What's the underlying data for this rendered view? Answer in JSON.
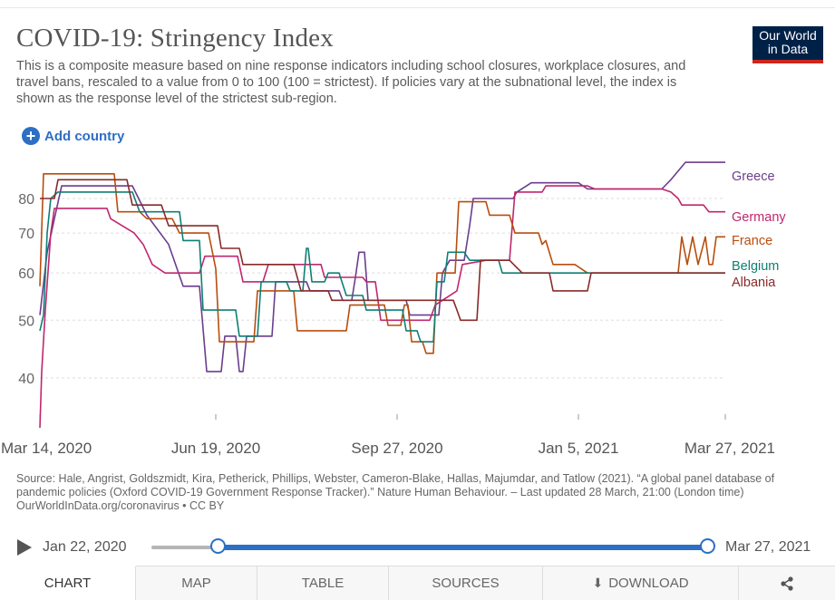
{
  "header": {
    "title": "COVID-19: Stringency Index",
    "subtitle": "This is a composite measure based on nine response indicators including school closures, workplace closures, and travel bans, rescaled to a value from 0 to 100 (100 = strictest). If policies vary at the subnational level, the index is shown as the response level of the strictest sub-region.",
    "logo_line1": "Our World",
    "logo_line2": "in Data",
    "logo_color": "#002147",
    "logo_accent": "#ce261e"
  },
  "controls": {
    "add_country_label": "Add country"
  },
  "source": {
    "line": "Source: Hale, Angrist, Goldszmidt, Kira, Petherick, Phillips, Webster, Cameron-Blake, Hallas, Majumdar, and Tatlow (2021). “A global panel database of pandemic policies (Oxford COVID-19 Government Response Tracker).” Nature Human Behaviour. – Last updated 28 March, 21:00 (London time)",
    "url": "OurWorldInData.org/coronavirus • CC BY"
  },
  "timeline": {
    "start_label": "Jan 22, 2020",
    "end_label": "Mar 27, 2021",
    "selection_start_fraction": 0.13,
    "selection_end_fraction": 1.0
  },
  "tabs": {
    "chart": "CHART",
    "map": "MAP",
    "table": "TABLE",
    "sources": "SOURCES",
    "download": "DOWNLOAD"
  },
  "chart_data": {
    "type": "line",
    "title": "COVID-19: Stringency Index",
    "y_scale": "log",
    "ylim": [
      30,
      90
    ],
    "y_ticks": [
      40,
      50,
      60,
      70,
      80
    ],
    "x_range": [
      "2020-03-14",
      "2021-03-27"
    ],
    "x_ticks": [
      {
        "date": "2020-03-14",
        "label": "Mar 14, 2020"
      },
      {
        "date": "2020-06-19",
        "label": "Jun 19, 2020"
      },
      {
        "date": "2020-09-27",
        "label": "Sep 27, 2020"
      },
      {
        "date": "2021-01-05",
        "label": "Jan 5, 2021"
      },
      {
        "date": "2021-03-27",
        "label": "Mar 27, 2021"
      }
    ],
    "grid": "horizontal-dotted",
    "legend_position": "right",
    "series": [
      {
        "name": "Greece",
        "color": "#6b3d8e",
        "points": [
          [
            "2020-03-14",
            51
          ],
          [
            "2020-03-18",
            65
          ],
          [
            "2020-03-22",
            74
          ],
          [
            "2020-03-26",
            84
          ],
          [
            "2020-05-04",
            84
          ],
          [
            "2020-05-12",
            75
          ],
          [
            "2020-05-24",
            67
          ],
          [
            "2020-06-01",
            57
          ],
          [
            "2020-06-10",
            57
          ],
          [
            "2020-06-14",
            41
          ],
          [
            "2020-06-22",
            41
          ],
          [
            "2020-06-24",
            47
          ],
          [
            "2020-06-30",
            47
          ],
          [
            "2020-07-02",
            41
          ],
          [
            "2020-07-04",
            41
          ],
          [
            "2020-07-06",
            47
          ],
          [
            "2020-07-12",
            47
          ],
          [
            "2020-07-20",
            47
          ],
          [
            "2020-07-22",
            58
          ],
          [
            "2020-08-08",
            58
          ],
          [
            "2020-08-10",
            56
          ],
          [
            "2020-08-26",
            56
          ],
          [
            "2020-08-28",
            54
          ],
          [
            "2020-09-02",
            54
          ],
          [
            "2020-09-04",
            59
          ],
          [
            "2020-09-06",
            65
          ],
          [
            "2020-09-09",
            65
          ],
          [
            "2020-09-11",
            54
          ],
          [
            "2020-09-27",
            54
          ],
          [
            "2020-10-02",
            54
          ],
          [
            "2020-10-04",
            51
          ],
          [
            "2020-10-20",
            51
          ],
          [
            "2020-10-22",
            60
          ],
          [
            "2020-10-26",
            63
          ],
          [
            "2020-11-03",
            63
          ],
          [
            "2020-11-06",
            72
          ],
          [
            "2020-11-08",
            80
          ],
          [
            "2020-11-30",
            80
          ],
          [
            "2020-12-02",
            82
          ],
          [
            "2020-12-10",
            85
          ],
          [
            "2021-01-05",
            85
          ],
          [
            "2021-01-10",
            83
          ],
          [
            "2021-02-20",
            83
          ],
          [
            "2021-02-25",
            86
          ],
          [
            "2021-03-05",
            92
          ],
          [
            "2021-03-27",
            92
          ]
        ]
      },
      {
        "name": "Germany",
        "color": "#c0266e",
        "points": [
          [
            "2020-03-14",
            33
          ],
          [
            "2020-03-15",
            41
          ],
          [
            "2020-03-17",
            52
          ],
          [
            "2020-03-20",
            70
          ],
          [
            "2020-03-22",
            77
          ],
          [
            "2020-04-20",
            77
          ],
          [
            "2020-04-22",
            74
          ],
          [
            "2020-05-05",
            70
          ],
          [
            "2020-05-10",
            67
          ],
          [
            "2020-05-15",
            62
          ],
          [
            "2020-05-22",
            60
          ],
          [
            "2020-06-10",
            60
          ],
          [
            "2020-06-13",
            64
          ],
          [
            "2020-06-25",
            64
          ],
          [
            "2020-07-01",
            64
          ],
          [
            "2020-07-04",
            58
          ],
          [
            "2020-07-15",
            58
          ],
          [
            "2020-07-18",
            62
          ],
          [
            "2020-08-16",
            62
          ],
          [
            "2020-08-18",
            59
          ],
          [
            "2020-09-08",
            59
          ],
          [
            "2020-09-10",
            58
          ],
          [
            "2020-09-15",
            58
          ],
          [
            "2020-09-18",
            50
          ],
          [
            "2020-10-15",
            50
          ],
          [
            "2020-10-18",
            53
          ],
          [
            "2020-10-30",
            56
          ],
          [
            "2020-11-02",
            62
          ],
          [
            "2020-11-15",
            63
          ],
          [
            "2020-11-28",
            63
          ],
          [
            "2020-12-01",
            82
          ],
          [
            "2020-12-16",
            82
          ],
          [
            "2020-12-18",
            84
          ],
          [
            "2021-01-10",
            84
          ],
          [
            "2021-01-14",
            83
          ],
          [
            "2021-02-20",
            83
          ],
          [
            "2021-02-25",
            82
          ],
          [
            "2021-03-01",
            80
          ],
          [
            "2021-03-03",
            78
          ],
          [
            "2021-03-15",
            78
          ],
          [
            "2021-03-18",
            76
          ],
          [
            "2021-03-27",
            76
          ]
        ]
      },
      {
        "name": "France",
        "color": "#b84d0e",
        "points": [
          [
            "2020-03-14",
            57
          ],
          [
            "2020-03-16",
            88
          ],
          [
            "2020-04-06",
            88
          ],
          [
            "2020-04-08",
            88
          ],
          [
            "2020-04-24",
            88
          ],
          [
            "2020-04-26",
            76
          ],
          [
            "2020-05-08",
            76
          ],
          [
            "2020-05-12",
            74
          ],
          [
            "2020-05-26",
            74
          ],
          [
            "2020-05-30",
            70
          ],
          [
            "2020-06-15",
            70
          ],
          [
            "2020-06-19",
            61
          ],
          [
            "2020-06-21",
            46
          ],
          [
            "2020-07-10",
            46
          ],
          [
            "2020-07-12",
            56
          ],
          [
            "2020-07-20",
            56
          ],
          [
            "2020-08-01",
            56
          ],
          [
            "2020-08-03",
            48
          ],
          [
            "2020-08-30",
            48
          ],
          [
            "2020-09-01",
            53
          ],
          [
            "2020-09-20",
            53
          ],
          [
            "2020-09-22",
            49
          ],
          [
            "2020-09-29",
            49
          ],
          [
            "2020-10-01",
            53
          ],
          [
            "2020-10-03",
            53
          ],
          [
            "2020-10-05",
            46
          ],
          [
            "2020-10-11",
            46
          ],
          [
            "2020-10-13",
            44
          ],
          [
            "2020-10-17",
            44
          ],
          [
            "2020-10-19",
            60
          ],
          [
            "2020-10-29",
            60
          ],
          [
            "2020-10-31",
            79
          ],
          [
            "2020-11-15",
            79
          ],
          [
            "2020-11-17",
            75
          ],
          [
            "2020-11-28",
            75
          ],
          [
            "2020-12-01",
            70
          ],
          [
            "2020-12-14",
            70
          ],
          [
            "2020-12-16",
            67
          ],
          [
            "2020-12-18",
            68
          ],
          [
            "2020-12-22",
            62
          ],
          [
            "2021-01-01",
            62
          ],
          [
            "2021-01-03",
            62
          ],
          [
            "2021-01-10",
            60
          ],
          [
            "2021-03-01",
            60
          ],
          [
            "2021-03-03",
            69
          ],
          [
            "2021-03-06",
            62
          ],
          [
            "2021-03-09",
            69
          ],
          [
            "2021-03-12",
            62
          ],
          [
            "2021-03-16",
            69
          ],
          [
            "2021-03-18",
            62
          ],
          [
            "2021-03-20",
            62
          ],
          [
            "2021-03-22",
            69
          ],
          [
            "2021-03-27",
            69
          ]
        ]
      },
      {
        "name": "Belgium",
        "color": "#0f7f73",
        "points": [
          [
            "2020-03-14",
            48
          ],
          [
            "2020-03-16",
            51
          ],
          [
            "2020-03-18",
            70
          ],
          [
            "2020-03-20",
            80
          ],
          [
            "2020-03-24",
            82
          ],
          [
            "2020-05-04",
            82
          ],
          [
            "2020-05-08",
            76
          ],
          [
            "2020-05-30",
            76
          ],
          [
            "2020-06-01",
            68
          ],
          [
            "2020-06-10",
            68
          ],
          [
            "2020-06-12",
            52
          ],
          [
            "2020-06-30",
            52
          ],
          [
            "2020-07-02",
            47
          ],
          [
            "2020-07-10",
            47
          ],
          [
            "2020-07-12",
            47
          ],
          [
            "2020-07-14",
            58
          ],
          [
            "2020-07-28",
            58
          ],
          [
            "2020-07-30",
            56
          ],
          [
            "2020-08-06",
            56
          ],
          [
            "2020-08-08",
            66
          ],
          [
            "2020-08-09",
            66
          ],
          [
            "2020-08-11",
            58
          ],
          [
            "2020-08-18",
            58
          ],
          [
            "2020-08-20",
            60
          ],
          [
            "2020-08-26",
            60
          ],
          [
            "2020-08-30",
            55
          ],
          [
            "2020-09-08",
            55
          ],
          [
            "2020-09-10",
            52
          ],
          [
            "2020-09-30",
            52
          ],
          [
            "2020-10-02",
            48
          ],
          [
            "2020-10-04",
            48
          ],
          [
            "2020-10-08",
            48
          ],
          [
            "2020-10-10",
            46
          ],
          [
            "2020-10-17",
            46
          ],
          [
            "2020-10-19",
            58
          ],
          [
            "2020-10-23",
            58
          ],
          [
            "2020-10-25",
            65
          ],
          [
            "2020-11-03",
            65
          ],
          [
            "2020-11-06",
            63
          ],
          [
            "2020-11-22",
            63
          ],
          [
            "2020-11-24",
            60
          ],
          [
            "2020-12-01",
            60
          ],
          [
            "2021-03-27",
            60
          ]
        ]
      },
      {
        "name": "Albania",
        "color": "#892a2a",
        "points": [
          [
            "2020-03-14",
            80
          ],
          [
            "2020-03-22",
            80
          ],
          [
            "2020-03-24",
            86
          ],
          [
            "2020-04-28",
            86
          ],
          [
            "2020-05-01",
            86
          ],
          [
            "2020-05-04",
            78
          ],
          [
            "2020-05-20",
            78
          ],
          [
            "2020-05-24",
            72
          ],
          [
            "2020-06-12",
            72
          ],
          [
            "2020-06-20",
            72
          ],
          [
            "2020-06-22",
            66
          ],
          [
            "2020-06-28",
            66
          ],
          [
            "2020-07-02",
            66
          ],
          [
            "2020-07-04",
            62
          ],
          [
            "2020-07-20",
            62
          ],
          [
            "2020-08-01",
            62
          ],
          [
            "2020-08-05",
            56
          ],
          [
            "2020-08-20",
            56
          ],
          [
            "2020-08-22",
            54
          ],
          [
            "2020-09-27",
            54
          ],
          [
            "2020-10-10",
            54
          ],
          [
            "2020-10-23",
            54
          ],
          [
            "2020-10-28",
            54
          ],
          [
            "2020-10-30",
            52
          ],
          [
            "2020-11-01",
            50
          ],
          [
            "2020-11-10",
            50
          ],
          [
            "2020-11-12",
            63
          ],
          [
            "2020-11-28",
            63
          ],
          [
            "2020-12-05",
            60
          ],
          [
            "2020-12-20",
            60
          ],
          [
            "2020-12-22",
            56
          ],
          [
            "2021-01-10",
            56
          ],
          [
            "2021-01-12",
            60
          ],
          [
            "2021-03-27",
            60
          ]
        ]
      }
    ]
  }
}
